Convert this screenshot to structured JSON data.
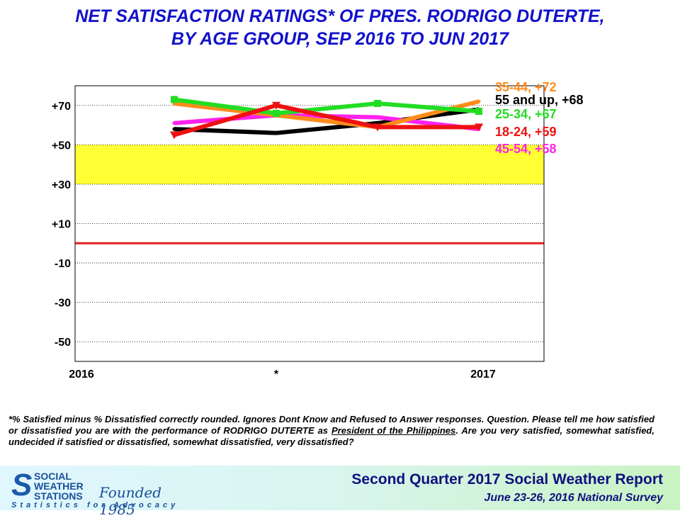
{
  "title_line1": "NET SATISFACTION RATINGS* OF PRES. RODRIGO DUTERTE,",
  "title_line2": "BY AGE GROUP, SEP 2016 TO JUN 2017",
  "footnote": {
    "p1": "*% Satisfied minus % Dissatisfied correctly rounded. Ignores Dont Know and Refused to Answer responses. Question. Please tell me how satisfied or dissatisfied you are with the performance of RODRIGO DUTERTE as ",
    "underlined": "President of the Philippines",
    "p2": ". Are you very satisfied, somewhat satisfied, undecided if satisfied or dissatisfied, somewhat dissatisfied, very dissatisfied?"
  },
  "footer": {
    "logo_line1": "SOCIAL",
    "logo_line2": "WEATHER",
    "logo_line3": "STATIONS",
    "founded": "Founded 1985",
    "tagline": "Statistics for Advocacy",
    "report_title": "Second Quarter 2017 Social Weather Report",
    "report_subtitle": "June 23-26, 2016 National Survey"
  },
  "colors": {
    "band": "#ffff33",
    "zero_line": "#e02020",
    "title": "#1111cc"
  },
  "chart_data": {
    "type": "line",
    "title": "NET SATISFACTION RATINGS* OF PRES. RODRIGO DUTERTE, BY AGE GROUP, SEP 2016 TO JUN 2017",
    "x_tick_labels": [
      "2016",
      "*",
      "2017"
    ],
    "y_tick_labels": [
      "+70",
      "+50",
      "+30",
      "+10",
      "-10",
      "-30",
      "-50"
    ],
    "y_ticks": [
      70,
      50,
      30,
      10,
      -10,
      -30,
      -50
    ],
    "ylim": [
      -60,
      80
    ],
    "highlight_band": [
      30,
      50
    ],
    "zero_line": 0,
    "grid": true,
    "series": [
      {
        "name": "55 and up",
        "end_label": "55 and up, +68",
        "color": "#000000",
        "values": [
          58,
          56,
          61,
          68
        ]
      },
      {
        "name": "45-54",
        "end_label": "45-54, +58",
        "color": "#ff22ee",
        "values": [
          61,
          65,
          64,
          58
        ]
      },
      {
        "name": "35-44",
        "end_label": "35-44, +72",
        "color": "#ff8c1a",
        "values": [
          71,
          65,
          59,
          72
        ]
      },
      {
        "name": "25-34",
        "end_label": "25-34, +67",
        "color": "#22dd22",
        "values": [
          73,
          66,
          71,
          67
        ]
      },
      {
        "name": "18-24",
        "end_label": "18-24, +59",
        "color": "#ee1111",
        "values": [
          55,
          70,
          59,
          59
        ]
      }
    ]
  }
}
